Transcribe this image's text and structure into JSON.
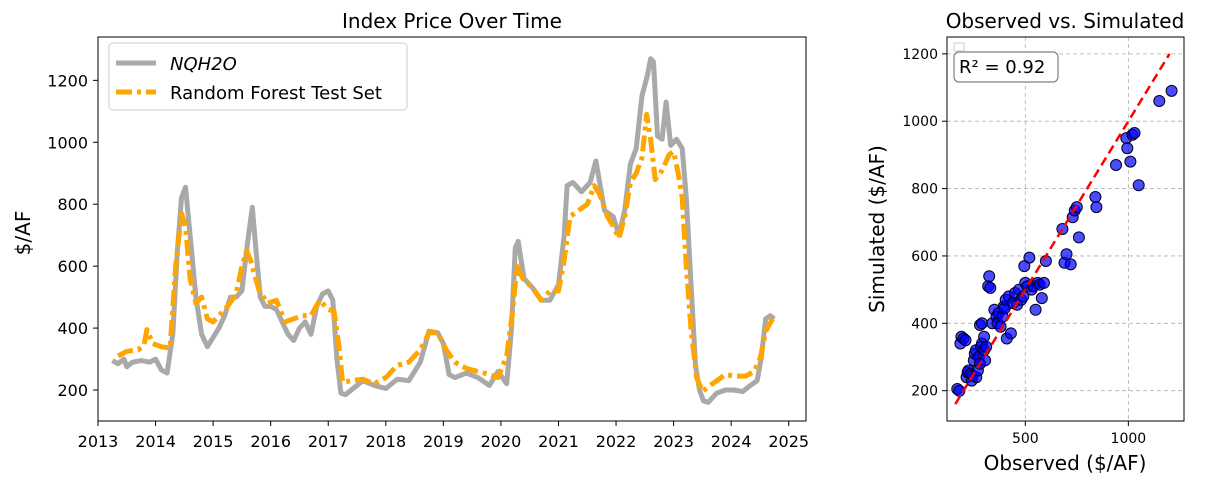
{
  "chart_data": [
    {
      "type": "line",
      "title": "Index Price Over Time",
      "xlabel": "",
      "ylabel": "$/AF",
      "xlim": [
        2013.0,
        2025.3
      ],
      "ylim": [
        100,
        1340
      ],
      "x_ticks": [
        2013,
        2014,
        2015,
        2016,
        2017,
        2018,
        2019,
        2020,
        2021,
        2022,
        2023,
        2024,
        2025
      ],
      "y_ticks": [
        200,
        400,
        600,
        800,
        1000,
        1200
      ],
      "legend_position": "top-left",
      "colors": {
        "NQH2O": "#a9a9a9",
        "RF": "#ffa500"
      },
      "series": [
        {
          "name": "NQH2O",
          "style": "solid",
          "points": [
            [
              2013.25,
              295
            ],
            [
              2013.35,
              285
            ],
            [
              2013.45,
              300
            ],
            [
              2013.5,
              275
            ],
            [
              2013.6,
              290
            ],
            [
              2013.75,
              295
            ],
            [
              2013.9,
              290
            ],
            [
              2014.0,
              300
            ],
            [
              2014.1,
              265
            ],
            [
              2014.2,
              255
            ],
            [
              2014.3,
              380
            ],
            [
              2014.38,
              650
            ],
            [
              2014.45,
              820
            ],
            [
              2014.52,
              855
            ],
            [
              2014.6,
              700
            ],
            [
              2014.7,
              500
            ],
            [
              2014.8,
              380
            ],
            [
              2014.9,
              340
            ],
            [
              2015.0,
              370
            ],
            [
              2015.1,
              400
            ],
            [
              2015.2,
              440
            ],
            [
              2015.3,
              500
            ],
            [
              2015.4,
              500
            ],
            [
              2015.5,
              520
            ],
            [
              2015.6,
              680
            ],
            [
              2015.68,
              790
            ],
            [
              2015.75,
              640
            ],
            [
              2015.82,
              500
            ],
            [
              2015.9,
              470
            ],
            [
              2016.0,
              470
            ],
            [
              2016.1,
              460
            ],
            [
              2016.2,
              420
            ],
            [
              2016.3,
              380
            ],
            [
              2016.4,
              360
            ],
            [
              2016.5,
              400
            ],
            [
              2016.6,
              420
            ],
            [
              2016.7,
              380
            ],
            [
              2016.8,
              470
            ],
            [
              2016.9,
              510
            ],
            [
              2017.0,
              520
            ],
            [
              2017.08,
              490
            ],
            [
              2017.15,
              300
            ],
            [
              2017.22,
              190
            ],
            [
              2017.3,
              185
            ],
            [
              2017.4,
              200
            ],
            [
              2017.6,
              230
            ],
            [
              2017.8,
              215
            ],
            [
              2018.0,
              205
            ],
            [
              2018.2,
              235
            ],
            [
              2018.4,
              230
            ],
            [
              2018.6,
              290
            ],
            [
              2018.75,
              390
            ],
            [
              2018.9,
              385
            ],
            [
              2019.0,
              350
            ],
            [
              2019.1,
              250
            ],
            [
              2019.2,
              240
            ],
            [
              2019.4,
              255
            ],
            [
              2019.6,
              240
            ],
            [
              2019.8,
              215
            ],
            [
              2019.95,
              260
            ],
            [
              2020.1,
              220
            ],
            [
              2020.18,
              390
            ],
            [
              2020.25,
              660
            ],
            [
              2020.3,
              680
            ],
            [
              2020.4,
              560
            ],
            [
              2020.55,
              530
            ],
            [
              2020.7,
              490
            ],
            [
              2020.85,
              490
            ],
            [
              2021.0,
              540
            ],
            [
              2021.1,
              700
            ],
            [
              2021.15,
              860
            ],
            [
              2021.25,
              870
            ],
            [
              2021.4,
              840
            ],
            [
              2021.55,
              870
            ],
            [
              2021.65,
              940
            ],
            [
              2021.8,
              780
            ],
            [
              2021.95,
              760
            ],
            [
              2022.05,
              700
            ],
            [
              2022.15,
              780
            ],
            [
              2022.25,
              930
            ],
            [
              2022.35,
              980
            ],
            [
              2022.45,
              1150
            ],
            [
              2022.55,
              1220
            ],
            [
              2022.6,
              1270
            ],
            [
              2022.65,
              1260
            ],
            [
              2022.72,
              1020
            ],
            [
              2022.8,
              1010
            ],
            [
              2022.87,
              1130
            ],
            [
              2022.95,
              990
            ],
            [
              2023.05,
              1010
            ],
            [
              2023.15,
              980
            ],
            [
              2023.22,
              820
            ],
            [
              2023.3,
              550
            ],
            [
              2023.38,
              280
            ],
            [
              2023.45,
              200
            ],
            [
              2023.52,
              165
            ],
            [
              2023.6,
              160
            ],
            [
              2023.75,
              190
            ],
            [
              2023.9,
              200
            ],
            [
              2024.05,
              200
            ],
            [
              2024.2,
              195
            ],
            [
              2024.3,
              210
            ],
            [
              2024.45,
              230
            ],
            [
              2024.52,
              300
            ],
            [
              2024.6,
              430
            ],
            [
              2024.68,
              440
            ],
            [
              2024.75,
              430
            ]
          ]
        },
        {
          "name": "Random Forest Test Set",
          "style": "dashdot",
          "points": [
            [
              2013.35,
              310
            ],
            [
              2013.5,
              325
            ],
            [
              2013.7,
              330
            ],
            [
              2013.8,
              345
            ],
            [
              2013.85,
              395
            ],
            [
              2013.95,
              350
            ],
            [
              2014.1,
              340
            ],
            [
              2014.25,
              335
            ],
            [
              2014.35,
              600
            ],
            [
              2014.45,
              770
            ],
            [
              2014.52,
              730
            ],
            [
              2014.6,
              560
            ],
            [
              2014.7,
              480
            ],
            [
              2014.8,
              500
            ],
            [
              2014.9,
              430
            ],
            [
              2015.0,
              420
            ],
            [
              2015.1,
              440
            ],
            [
              2015.25,
              470
            ],
            [
              2015.4,
              510
            ],
            [
              2015.5,
              600
            ],
            [
              2015.58,
              650
            ],
            [
              2015.65,
              620
            ],
            [
              2015.8,
              520
            ],
            [
              2015.95,
              480
            ],
            [
              2016.1,
              490
            ],
            [
              2016.25,
              420
            ],
            [
              2016.4,
              430
            ],
            [
              2016.55,
              440
            ],
            [
              2016.7,
              440
            ],
            [
              2016.85,
              490
            ],
            [
              2017.0,
              460
            ],
            [
              2017.1,
              455
            ],
            [
              2017.18,
              350
            ],
            [
              2017.25,
              225
            ],
            [
              2017.4,
              230
            ],
            [
              2017.6,
              235
            ],
            [
              2017.8,
              220
            ],
            [
              2018.0,
              240
            ],
            [
              2018.2,
              280
            ],
            [
              2018.4,
              290
            ],
            [
              2018.6,
              330
            ],
            [
              2018.75,
              385
            ],
            [
              2018.9,
              385
            ],
            [
              2019.05,
              330
            ],
            [
              2019.2,
              290
            ],
            [
              2019.4,
              270
            ],
            [
              2019.6,
              260
            ],
            [
              2019.8,
              250
            ],
            [
              2019.95,
              240
            ],
            [
              2020.1,
              310
            ],
            [
              2020.2,
              450
            ],
            [
              2020.28,
              600
            ],
            [
              2020.38,
              560
            ],
            [
              2020.55,
              530
            ],
            [
              2020.7,
              490
            ],
            [
              2020.85,
              520
            ],
            [
              2021.0,
              520
            ],
            [
              2021.1,
              620
            ],
            [
              2021.2,
              760
            ],
            [
              2021.35,
              780
            ],
            [
              2021.5,
              800
            ],
            [
              2021.62,
              860
            ],
            [
              2021.72,
              830
            ],
            [
              2021.85,
              760
            ],
            [
              2021.95,
              730
            ],
            [
              2022.05,
              690
            ],
            [
              2022.15,
              760
            ],
            [
              2022.25,
              870
            ],
            [
              2022.35,
              900
            ],
            [
              2022.45,
              950
            ],
            [
              2022.53,
              1090
            ],
            [
              2022.6,
              1010
            ],
            [
              2022.68,
              880
            ],
            [
              2022.77,
              900
            ],
            [
              2022.85,
              930
            ],
            [
              2022.92,
              960
            ],
            [
              2023.0,
              970
            ],
            [
              2023.08,
              900
            ],
            [
              2023.15,
              820
            ],
            [
              2023.22,
              600
            ],
            [
              2023.3,
              400
            ],
            [
              2023.4,
              240
            ],
            [
              2023.5,
              195
            ],
            [
              2023.6,
              210
            ],
            [
              2023.75,
              230
            ],
            [
              2023.9,
              250
            ],
            [
              2024.05,
              245
            ],
            [
              2024.25,
              245
            ],
            [
              2024.4,
              260
            ],
            [
              2024.5,
              300
            ],
            [
              2024.6,
              390
            ],
            [
              2024.72,
              430
            ]
          ]
        }
      ]
    },
    {
      "type": "scatter",
      "title": "Observed vs. Simulated",
      "xlabel": "Observed ($/AF)",
      "ylabel": "Simulated ($/AF)",
      "xlim": [
        120,
        1270
      ],
      "ylim": [
        110,
        1250
      ],
      "x_ticks": [
        500,
        1000
      ],
      "y_ticks": [
        200,
        400,
        600,
        800,
        1000,
        1200
      ],
      "grid": true,
      "annotation": "R² = 0.92",
      "reference_line": {
        "from": [
          160,
          160
        ],
        "to": [
          1200,
          1200
        ],
        "color": "#ff0000",
        "style": "dashed"
      },
      "marker_color": "#0000ff",
      "points": [
        [
          170,
          205
        ],
        [
          180,
          200
        ],
        [
          185,
          340
        ],
        [
          190,
          360
        ],
        [
          200,
          355
        ],
        [
          210,
          350
        ],
        [
          215,
          240
        ],
        [
          220,
          255
        ],
        [
          225,
          260
        ],
        [
          235,
          250
        ],
        [
          240,
          230
        ],
        [
          245,
          245
        ],
        [
          250,
          290
        ],
        [
          255,
          310
        ],
        [
          260,
          320
        ],
        [
          262,
          240
        ],
        [
          270,
          260
        ],
        [
          275,
          300
        ],
        [
          280,
          280
        ],
        [
          285,
          330
        ],
        [
          290,
          340
        ],
        [
          300,
          320
        ],
        [
          305,
          290
        ],
        [
          310,
          330
        ],
        [
          280,
          395
        ],
        [
          290,
          400
        ],
        [
          300,
          360
        ],
        [
          320,
          510
        ],
        [
          325,
          540
        ],
        [
          330,
          505
        ],
        [
          340,
          400
        ],
        [
          350,
          440
        ],
        [
          360,
          420
        ],
        [
          365,
          400
        ],
        [
          370,
          430
        ],
        [
          380,
          390
        ],
        [
          390,
          420
        ],
        [
          395,
          450
        ],
        [
          400,
          445
        ],
        [
          405,
          470
        ],
        [
          410,
          355
        ],
        [
          420,
          480
        ],
        [
          430,
          370
        ],
        [
          440,
          460
        ],
        [
          450,
          490
        ],
        [
          460,
          455
        ],
        [
          470,
          500
        ],
        [
          480,
          470
        ],
        [
          490,
          480
        ],
        [
          495,
          570
        ],
        [
          500,
          520
        ],
        [
          510,
          510
        ],
        [
          520,
          595
        ],
        [
          530,
          500
        ],
        [
          540,
          510
        ],
        [
          550,
          440
        ],
        [
          560,
          520
        ],
        [
          570,
          515
        ],
        [
          580,
          475
        ],
        [
          590,
          520
        ],
        [
          600,
          585
        ],
        [
          680,
          680
        ],
        [
          690,
          580
        ],
        [
          700,
          605
        ],
        [
          720,
          575
        ],
        [
          730,
          715
        ],
        [
          740,
          735
        ],
        [
          750,
          745
        ],
        [
          760,
          655
        ],
        [
          840,
          775
        ],
        [
          845,
          745
        ],
        [
          940,
          870
        ],
        [
          990,
          950
        ],
        [
          995,
          920
        ],
        [
          1010,
          880
        ],
        [
          1020,
          960
        ],
        [
          1030,
          965
        ],
        [
          1050,
          810
        ],
        [
          1150,
          1060
        ],
        [
          1210,
          1090
        ]
      ]
    }
  ]
}
